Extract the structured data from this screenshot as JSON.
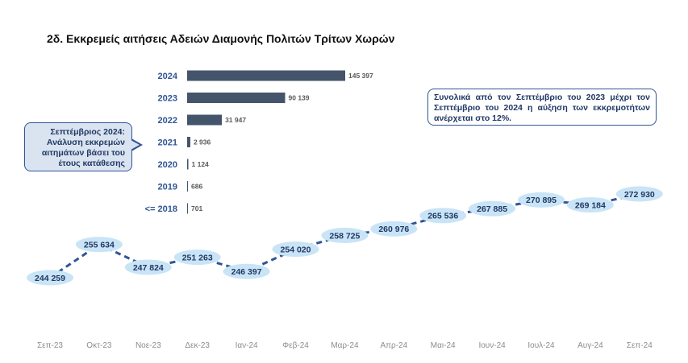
{
  "title": "2δ. Εκκρεμείς αιτήσεις Αδειών Διαμονής Πολιτών Τρίτων Χωρών",
  "callouts": {
    "left": "Σεπτέμβριος 2024: Ανάλυση εκκρεμών αιτημάτων βάσει του έτους κατάθεσης",
    "right": "Συνολικά από τον Σεπτέμβριο του 2023 μέχρι τον Σεπτέμβριο του 2024 η αύξηση των εκκρεμοτήτων ανέρχεται στο 12%."
  },
  "colors": {
    "bar": "#44546a",
    "line": "#2f5597",
    "label_bubble": "#c9e4f6",
    "year_label": "#2f5597"
  },
  "chart_data": [
    {
      "type": "bar",
      "orientation": "horizontal",
      "categories": [
        "2024",
        "2023",
        "2022",
        "2021",
        "2020",
        "2019",
        "<= 2018"
      ],
      "values": [
        145397,
        90139,
        31947,
        2936,
        1124,
        686,
        701
      ],
      "value_labels": [
        "145 397",
        "90 139",
        "31 947",
        "2 936",
        "1 124",
        "686",
        "701"
      ]
    },
    {
      "type": "line",
      "categories": [
        "Σεπ-23",
        "Οκτ-23",
        "Νοε-23",
        "Δεκ-23",
        "Ιαν-24",
        "Φεβ-24",
        "Μαρ-24",
        "Απρ-24",
        "Μαι-24",
        "Ιουν-24",
        "Ιουλ-24",
        "Αυγ-24",
        "Σεπ-24"
      ],
      "values": [
        244259,
        255634,
        247824,
        251263,
        246397,
        254020,
        258725,
        260976,
        265536,
        267885,
        270895,
        269184,
        272930
      ],
      "value_labels": [
        "244 259",
        "255 634",
        "247 824",
        "251 263",
        "246 397",
        "254 020",
        "258 725",
        "260 976",
        "265 536",
        "267 885",
        "270 895",
        "269 184",
        "272 930"
      ],
      "line_style": "dashed"
    }
  ]
}
